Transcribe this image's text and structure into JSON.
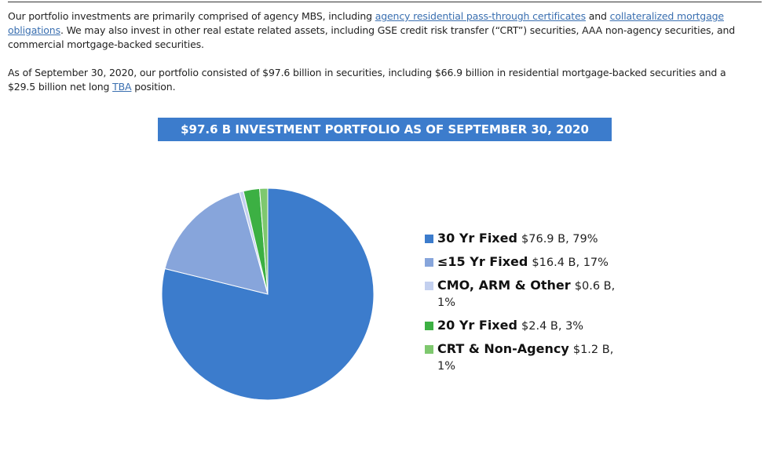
{
  "intro": {
    "p1": {
      "t1": "Our portfolio investments are primarily comprised of agency MBS, including ",
      "link1": "agency residential pass-through certificates",
      "t2": " and ",
      "link2": "collateralized mortgage obligations",
      "t3": ". We may also invest in other real estate related assets, including GSE credit risk transfer (“CRT”) securities, AAA non-agency securities, and commercial mortgage-backed securities."
    },
    "p2": {
      "t1": "As of September 30, 2020, our portfolio consisted of $97.6 billion in securities, including $66.9 billion in residential mortgage-backed securities and a $29.5 billion net long ",
      "link1": "TBA",
      "t2": " position."
    }
  },
  "chart_data": {
    "type": "pie",
    "title": "$97.6 B INVESTMENT PORTFOLIO AS OF SEPTEMBER 30, 2020",
    "legend_position": "right",
    "slices": [
      {
        "label": "30 Yr Fixed",
        "detail": "$76.9 B, 79%",
        "value": 76.9,
        "percent": 79,
        "color": "#3c7ccc"
      },
      {
        "label": "≤15 Yr Fixed",
        "detail": "$16.4 B, 17%",
        "value": 16.4,
        "percent": 17,
        "color": "#87a5db"
      },
      {
        "label": "CMO, ARM & Other",
        "detail": "$0.6 B, 1%",
        "value": 0.6,
        "percent": 1,
        "color": "#c3d0ef"
      },
      {
        "label": "20 Yr Fixed",
        "detail": "$2.4 B, 3%",
        "value": 2.4,
        "percent": 3,
        "color": "#3cb043"
      },
      {
        "label": "CRT & Non-Agency",
        "detail": "$1.2 B, 1%",
        "value": 1.2,
        "percent": 1,
        "color": "#7ec86e"
      }
    ]
  }
}
